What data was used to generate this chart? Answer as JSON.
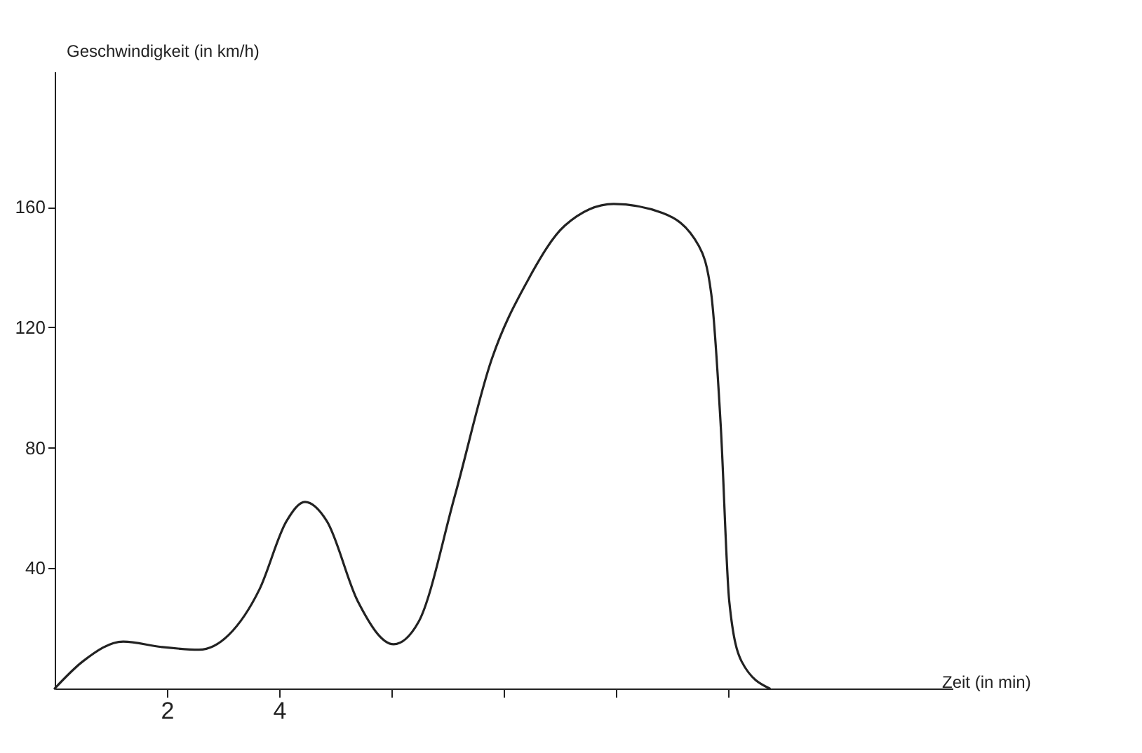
{
  "chart_data": {
    "type": "line",
    "xlabel": "Zeit (in min)",
    "ylabel": "Geschwindigkeit (in km/h)",
    "x": [
      0,
      0.5,
      1.22,
      1.9,
      2.57,
      3.1,
      3.65,
      4.13,
      4.46,
      4.85,
      5.4,
      6.04,
      6.48,
      7.13,
      7.78,
      8.43,
      9.09,
      9.96,
      10.83,
      11.48,
      11.7,
      11.87,
      12.02,
      12.24,
      12.74
    ],
    "values": [
      0,
      9,
      15.6,
      13.8,
      12.9,
      17.8,
      33,
      55.6,
      62,
      55.6,
      29,
      14.7,
      22,
      64,
      109,
      135.6,
      153.8,
      161,
      158,
      147,
      131,
      86.7,
      29,
      9,
      0
    ],
    "color": "#222222",
    "marker": "none",
    "line_style": "solid",
    "grid": false,
    "xlim": [
      0,
      16
    ],
    "ylim": [
      0,
      205
    ],
    "xticks": [
      2,
      4,
      {
        "value": 6,
        "label": null
      },
      {
        "value": 8,
        "label": null
      },
      {
        "value": 10,
        "label": null
      },
      {
        "value": 12,
        "label": null
      }
    ],
    "yticks": [
      40,
      80,
      120,
      160
    ]
  }
}
